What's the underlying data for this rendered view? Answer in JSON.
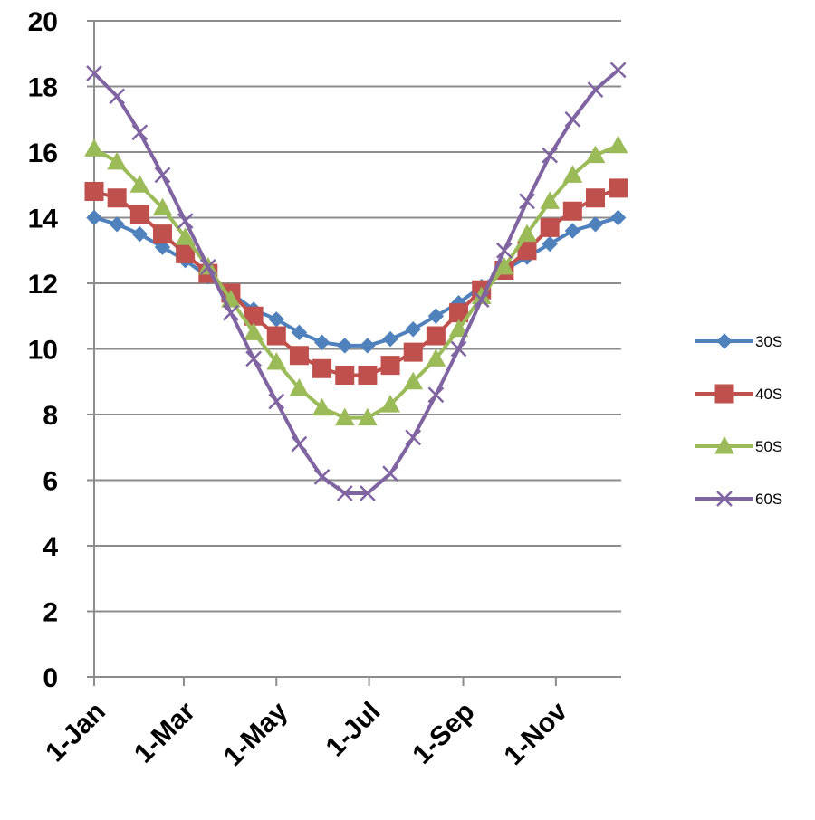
{
  "chart_data": {
    "type": "line",
    "title": "",
    "xlabel": "",
    "ylabel": "",
    "x_tick_labels": [
      "1-Jan",
      "1-Mar",
      "1-May",
      "1-Jul",
      "1-Sep",
      "1-Nov"
    ],
    "x_tick_days": [
      1,
      60,
      121,
      182,
      244,
      305
    ],
    "x_range_days": [
      1,
      348
    ],
    "ylim": [
      0,
      20
    ],
    "y_ticks": [
      0,
      2,
      4,
      6,
      8,
      10,
      12,
      14,
      16,
      18,
      20
    ],
    "grid": "horizontal",
    "legend_position": "right",
    "x_days": [
      1,
      16,
      31,
      46,
      61,
      76,
      91,
      106,
      121,
      136,
      151,
      166,
      181,
      196,
      211,
      226,
      241,
      256,
      271,
      286,
      301,
      316,
      331,
      346
    ],
    "series": [
      {
        "name": "30S",
        "color": "#4F81BD",
        "marker": "diamond",
        "values": [
          14.0,
          13.8,
          13.5,
          13.1,
          12.7,
          12.2,
          11.7,
          11.2,
          10.9,
          10.5,
          10.2,
          10.1,
          10.1,
          10.3,
          10.6,
          11.0,
          11.4,
          11.9,
          12.4,
          12.8,
          13.2,
          13.6,
          13.8,
          14.0
        ]
      },
      {
        "name": "40S",
        "color": "#C0504D",
        "marker": "square",
        "values": [
          14.8,
          14.6,
          14.1,
          13.5,
          12.9,
          12.3,
          11.7,
          11.0,
          10.4,
          9.8,
          9.4,
          9.2,
          9.2,
          9.5,
          9.9,
          10.4,
          11.1,
          11.8,
          12.4,
          13.0,
          13.7,
          14.2,
          14.6,
          14.9
        ]
      },
      {
        "name": "50S",
        "color": "#9BBB59",
        "marker": "triangle",
        "values": [
          16.1,
          15.7,
          15.0,
          14.3,
          13.4,
          12.5,
          11.5,
          10.5,
          9.6,
          8.8,
          8.2,
          7.9,
          7.9,
          8.3,
          9.0,
          9.7,
          10.6,
          11.6,
          12.5,
          13.5,
          14.5,
          15.3,
          15.9,
          16.2
        ]
      },
      {
        "name": "60S",
        "color": "#8064A2",
        "marker": "x",
        "values": [
          18.4,
          17.7,
          16.6,
          15.3,
          13.9,
          12.5,
          11.1,
          9.7,
          8.4,
          7.1,
          6.1,
          5.6,
          5.6,
          6.2,
          7.3,
          8.6,
          10.0,
          11.5,
          13.0,
          14.5,
          15.9,
          17.0,
          17.9,
          18.5
        ]
      }
    ]
  }
}
